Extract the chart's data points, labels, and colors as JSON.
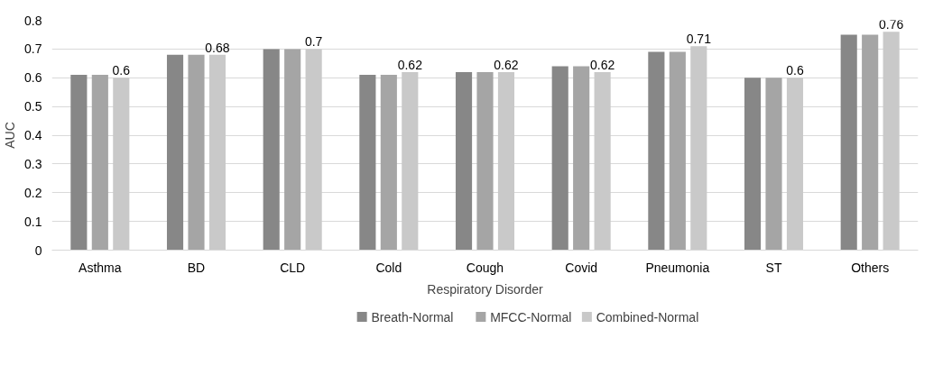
{
  "chart_data": {
    "type": "bar",
    "xlabel": "Respiratory Disorder",
    "ylabel": "AUC",
    "categories": [
      "Asthma",
      "BD",
      "CLD",
      "Cold",
      "Cough",
      "Covid",
      "Pneumonia",
      "ST",
      "Others"
    ],
    "series": [
      {
        "name": "Breath-Normal",
        "color": "#878787",
        "values": [
          0.61,
          0.68,
          0.7,
          0.61,
          0.62,
          0.64,
          0.69,
          0.6,
          0.75
        ]
      },
      {
        "name": "MFCC-Normal",
        "color": "#a5a5a5",
        "values": [
          0.61,
          0.68,
          0.7,
          0.61,
          0.62,
          0.64,
          0.69,
          0.6,
          0.75
        ]
      },
      {
        "name": "Combined-Normal",
        "color": "#c9c9c9",
        "values": [
          0.6,
          0.68,
          0.7,
          0.62,
          0.62,
          0.62,
          0.71,
          0.6,
          0.76
        ],
        "value_labels": [
          "0.6",
          "0.68",
          "0.7",
          "0.62",
          "0.62",
          "0.62",
          "0.71",
          "0.6",
          "0.76"
        ]
      }
    ],
    "ylim": [
      0,
      0.8
    ],
    "yticks": [
      0,
      0.1,
      0.2,
      0.3,
      0.4,
      0.5,
      0.6,
      0.7,
      0.8
    ],
    "grid": "y",
    "legend": "bottom"
  }
}
